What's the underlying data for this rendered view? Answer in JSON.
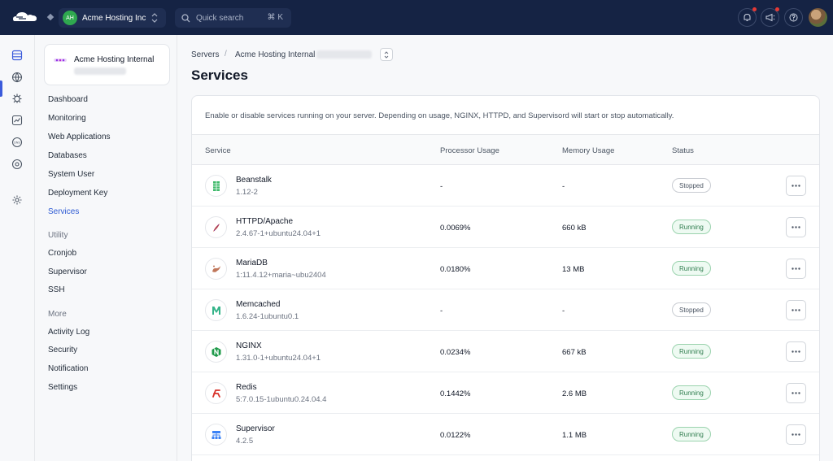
{
  "topbar": {
    "org_initials": "AH",
    "org_name": "Acme Hosting Inc",
    "search_placeholder": "Quick search",
    "search_shortcut": "⌘ K",
    "brand_color": "#152344"
  },
  "rail": {
    "icons": [
      "servers-icon",
      "globe-icon",
      "bug-icon",
      "chart-icon",
      "dns-icon",
      "globe-settings-icon",
      "settings-icon"
    ]
  },
  "sidebar": {
    "server_name": "Acme Hosting Internal",
    "items": [
      "Dashboard",
      "Monitoring",
      "Web Applications",
      "Databases",
      "System User",
      "Deployment Key",
      "Services"
    ],
    "utility_heading": "Utility",
    "utility_items": [
      "Cronjob",
      "Supervisor",
      "SSH"
    ],
    "more_heading": "More",
    "more_items": [
      "Activity Log",
      "Security",
      "Notification",
      "Settings"
    ]
  },
  "breadcrumb": {
    "root": "Servers",
    "server": "Acme Hosting Internal"
  },
  "page": {
    "title": "Services",
    "description": "Enable or disable services running on your server. Depending on usage, NGINX, HTTPD, and Supervisord will start or stop automatically."
  },
  "table": {
    "headers": [
      "Service",
      "Processor Usage",
      "Memory Usage",
      "Status"
    ],
    "rows": [
      {
        "name": "Beanstalk",
        "version": "1.12-2",
        "cpu": "-",
        "mem": "-",
        "status": "Stopped",
        "icon": "beanstalk-icon"
      },
      {
        "name": "HTTPD/Apache",
        "version": "2.4.67-1+ubuntu24.04+1",
        "cpu": "0.0069%",
        "mem": "660 kB",
        "status": "Running",
        "icon": "apache-feather-icon"
      },
      {
        "name": "MariaDB",
        "version": "1:11.4.12+maria~ubu2404",
        "cpu": "0.0180%",
        "mem": "13 MB",
        "status": "Running",
        "icon": "mariadb-seal-icon"
      },
      {
        "name": "Memcached",
        "version": "1.6.24-1ubuntu0.1",
        "cpu": "-",
        "mem": "-",
        "status": "Stopped",
        "icon": "memcached-icon"
      },
      {
        "name": "NGINX",
        "version": "1.31.0-1+ubuntu24.04+1",
        "cpu": "0.0234%",
        "mem": "667 kB",
        "status": "Running",
        "icon": "nginx-icon"
      },
      {
        "name": "Redis",
        "version": "5:7.0.15-1ubuntu0.24.04.4",
        "cpu": "0.1442%",
        "mem": "2.6 MB",
        "status": "Running",
        "icon": "redis-icon"
      },
      {
        "name": "Supervisor",
        "version": "4.2.5",
        "cpu": "0.0122%",
        "mem": "1.1 MB",
        "status": "Running",
        "icon": "supervisor-icon"
      }
    ]
  }
}
